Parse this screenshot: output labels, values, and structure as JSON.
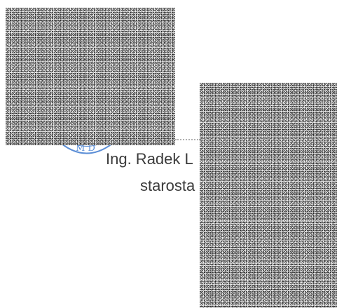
{
  "signature": {
    "name": "Ing. Radek L",
    "role": "starosta"
  },
  "stamp": {
    "text": "M D",
    "color": "#5b8ed6"
  },
  "colors": {
    "background": "#ffffff",
    "text": "#3b3b3b",
    "noise_dark": "#000000",
    "noise_light": "#f2f2f2"
  }
}
